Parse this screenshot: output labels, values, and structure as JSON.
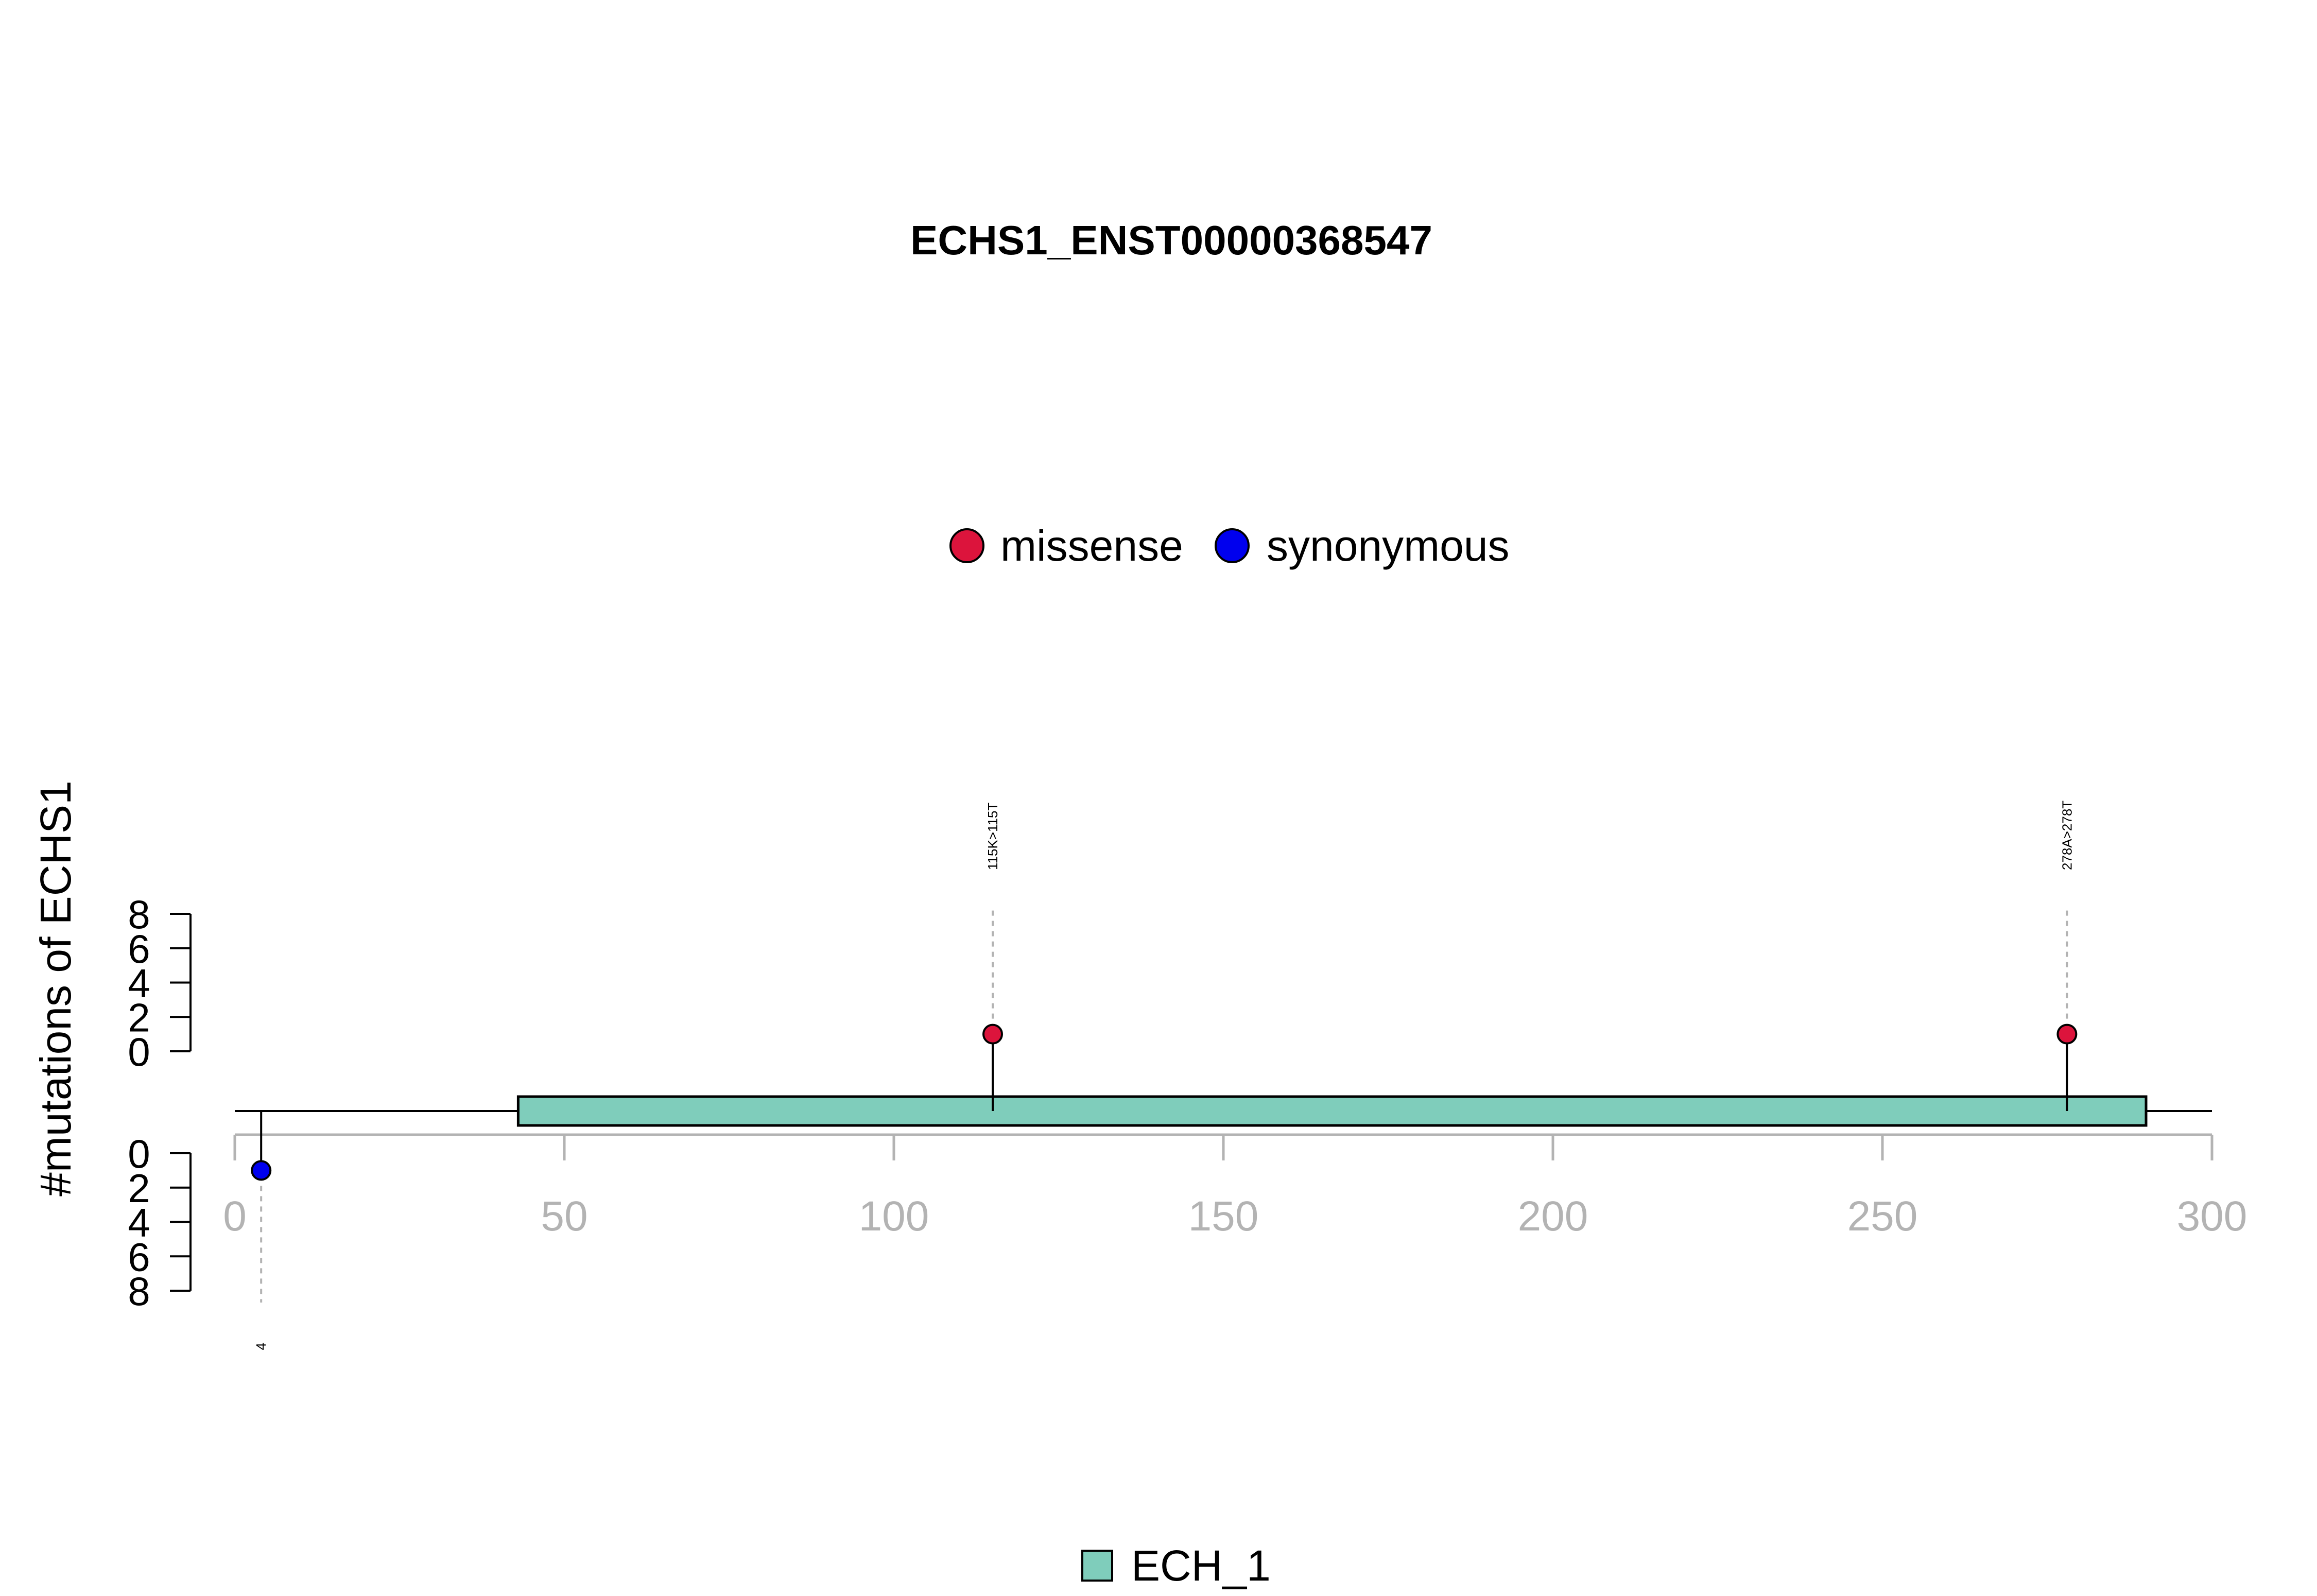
{
  "chart_data": {
    "type": "lollipop",
    "title": "ECHS1_ENST00000368547",
    "ylabel": "#mutations of ECHS1",
    "xlim": [
      0,
      300
    ],
    "x_ticks": [
      0,
      50,
      100,
      150,
      200,
      250,
      300
    ],
    "y_ticks": [
      0,
      2,
      4,
      6,
      8
    ],
    "protein_length": 300,
    "legend_mutation_types": [
      {
        "name": "missense",
        "color": "#DC143C"
      },
      {
        "name": "synonymous",
        "color": "#0000EE"
      }
    ],
    "domains": [
      {
        "name": "ECH_1",
        "start": 43,
        "end": 290,
        "color": "#7FCDBB"
      }
    ],
    "mutations_above": [
      {
        "position": 115,
        "count": 1,
        "type": "missense",
        "label": "115K>115T"
      },
      {
        "position": 278,
        "count": 1,
        "type": "missense",
        "label": "278A>278T"
      }
    ],
    "mutations_below": [
      {
        "position": 4,
        "count": 1,
        "type": "synonymous",
        "label": "4"
      }
    ]
  }
}
